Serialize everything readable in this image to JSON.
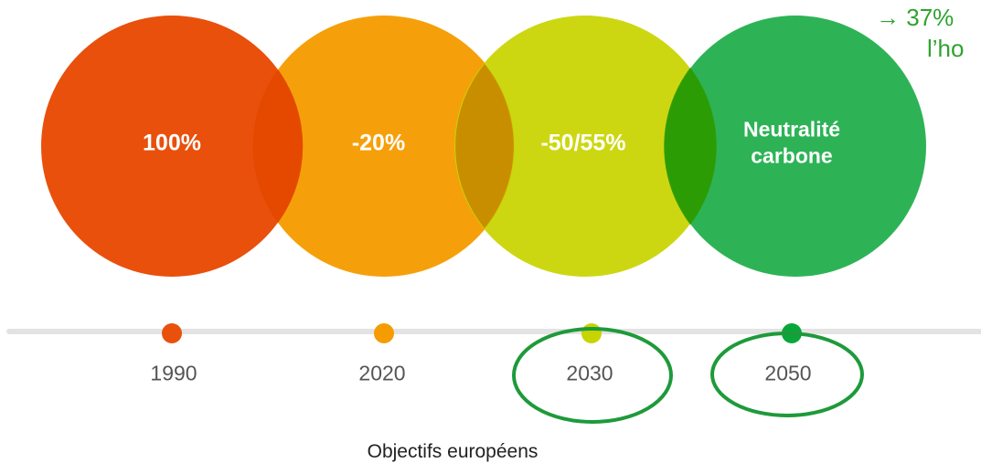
{
  "colors": {
    "red": "#e8500c",
    "orange": "#f59c00",
    "lime": "#c8d400",
    "green": "#0aa63a",
    "timeline": "#e3e3e3",
    "highlight_ring": "#1e9a3a",
    "note_text": "#2fa32f"
  },
  "circles": [
    {
      "label": "100%",
      "color": "#e8500c"
    },
    {
      "label": "-20%",
      "color": "#f59c00"
    },
    {
      "label": "-50/55%",
      "color": "#c8d400"
    },
    {
      "label_line1": "Neutralité",
      "label_line2": "carbone",
      "color": "#0aa63a"
    }
  ],
  "timeline": {
    "points": [
      {
        "year": "1990",
        "color": "#e8500c",
        "highlighted": false
      },
      {
        "year": "2020",
        "color": "#f59c00",
        "highlighted": false
      },
      {
        "year": "2030",
        "color": "#c8d400",
        "highlighted": true
      },
      {
        "year": "2050",
        "color": "#0aa63a",
        "highlighted": true
      }
    ]
  },
  "caption": "Objectifs européens",
  "note": {
    "arrow": "→",
    "line1": "37%",
    "line2": "l’ho"
  }
}
